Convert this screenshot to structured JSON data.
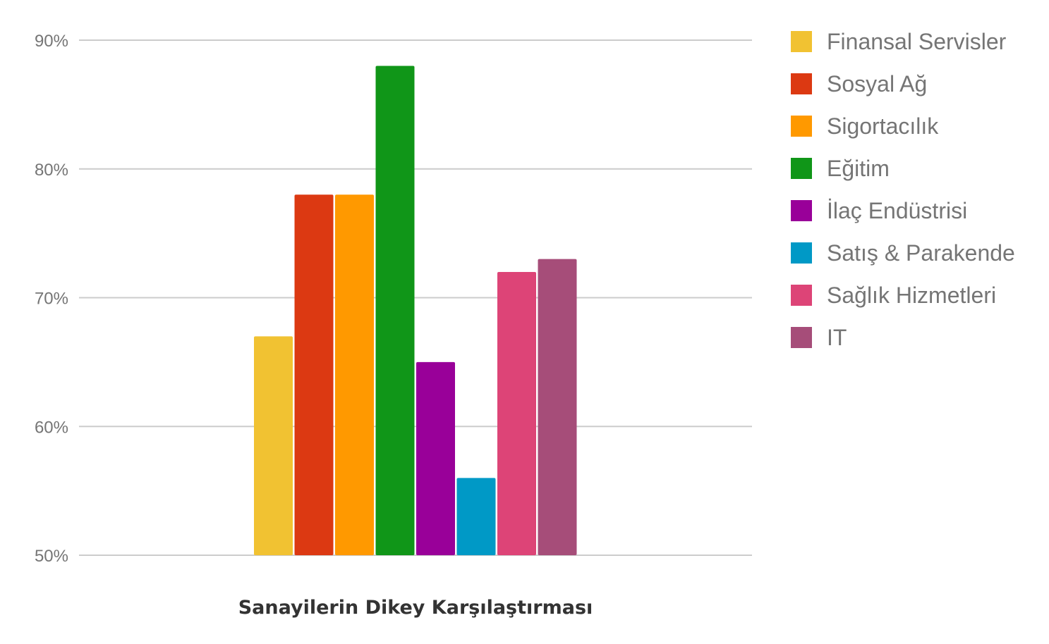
{
  "chart_data": {
    "type": "bar",
    "title": "",
    "xlabel": "Sanayilerin Dikey Karşılaştırması",
    "ylabel": "",
    "ylim": [
      50,
      90
    ],
    "yticks": [
      "50%",
      "60%",
      "70%",
      "80%",
      "90%"
    ],
    "grid": true,
    "legend_position": "right",
    "categories": [
      "Sanayilerin Dikey Karşılaştırması"
    ],
    "series": [
      {
        "name": "Finansal Servisler",
        "values": [
          67
        ],
        "color": "#f1c232"
      },
      {
        "name": "Sosyal Ağ",
        "values": [
          78
        ],
        "color": "#dc3912"
      },
      {
        "name": "Sigortacılık",
        "values": [
          78
        ],
        "color": "#ff9900"
      },
      {
        "name": "Eğitim",
        "values": [
          88
        ],
        "color": "#109618"
      },
      {
        "name": "İlaç Endüstrisi",
        "values": [
          65
        ],
        "color": "#990099"
      },
      {
        "name": "Satış & Parakende",
        "values": [
          56
        ],
        "color": "#0099c6"
      },
      {
        "name": "Sağlık Hizmetleri",
        "values": [
          72
        ],
        "color": "#dd4477"
      },
      {
        "name": "IT",
        "values": [
          73
        ],
        "color": "#a64d79"
      }
    ]
  }
}
